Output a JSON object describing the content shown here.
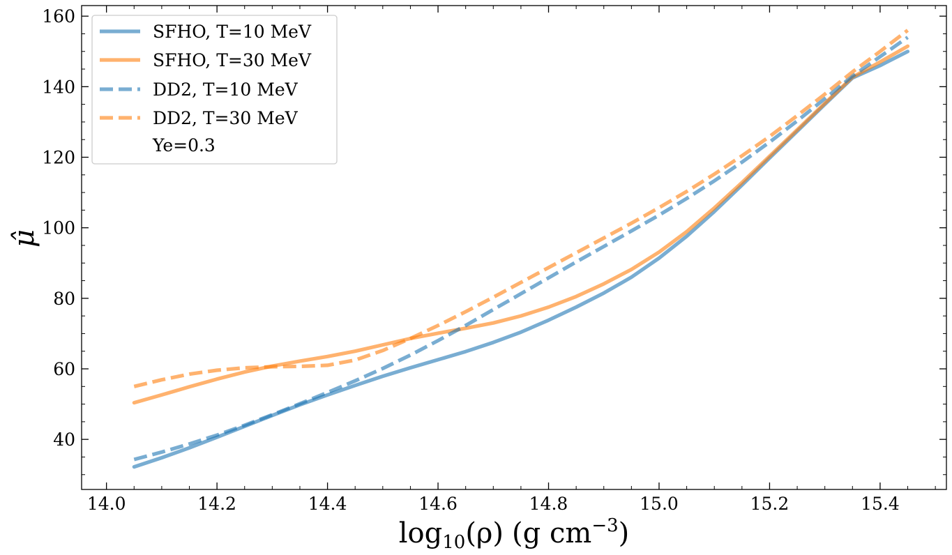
{
  "chart_data": {
    "type": "line",
    "xlabel": "log10(ρ) (g cm⁻³)",
    "xlabel_parts": {
      "func": "log",
      "sub": "10",
      "arg": "(ρ)",
      "unit": "(g cm",
      "exp": "−3",
      "close": ")"
    },
    "ylabel": "μ̂",
    "xlim": [
      13.955,
      15.52
    ],
    "ylim": [
      25.8,
      163
    ],
    "xticks": [
      14.0,
      14.2,
      14.4,
      14.6,
      14.8,
      15.0,
      15.2,
      15.4
    ],
    "xtick_labels": [
      "14.0",
      "14.2",
      "14.4",
      "14.6",
      "14.8",
      "15.0",
      "15.2",
      "15.4"
    ],
    "yticks": [
      40,
      60,
      80,
      100,
      120,
      140,
      160
    ],
    "ytick_labels": [
      "40",
      "60",
      "80",
      "100",
      "120",
      "140",
      "160"
    ],
    "legend_position": "top-left",
    "annotation": "Ye=0.3",
    "series": [
      {
        "name": "SFHO, T=10 MeV",
        "color": "#1f77b4",
        "style": "solid",
        "x": [
          14.05,
          14.1,
          14.15,
          14.2,
          14.25,
          14.3,
          14.35,
          14.4,
          14.45,
          14.5,
          14.55,
          14.6,
          14.65,
          14.7,
          14.75,
          14.8,
          14.85,
          14.9,
          14.95,
          15.0,
          15.05,
          15.1,
          15.15,
          15.2,
          15.25,
          15.3,
          15.35,
          15.4,
          15.45
        ],
        "y": [
          32.2,
          34.8,
          37.6,
          40.6,
          43.7,
          46.8,
          49.8,
          52.6,
          55.3,
          57.9,
          60.3,
          62.6,
          64.9,
          67.5,
          70.4,
          73.8,
          77.5,
          81.5,
          86.0,
          91.4,
          97.6,
          104.6,
          112.1,
          119.8,
          127.4,
          135.0,
          142.5,
          146.0,
          150.0
        ]
      },
      {
        "name": "SFHO, T=30 MeV",
        "color": "#ff7f0e",
        "style": "solid",
        "x": [
          14.05,
          14.1,
          14.15,
          14.2,
          14.25,
          14.3,
          14.35,
          14.4,
          14.45,
          14.5,
          14.55,
          14.6,
          14.65,
          14.7,
          14.75,
          14.8,
          14.85,
          14.9,
          14.95,
          15.0,
          15.05,
          15.1,
          15.15,
          15.2,
          15.25,
          15.3,
          15.35,
          15.4,
          15.45
        ],
        "y": [
          50.4,
          52.6,
          54.9,
          57.1,
          59.1,
          60.8,
          62.2,
          63.5,
          65.0,
          66.8,
          68.6,
          70.1,
          71.5,
          73.0,
          75.0,
          77.5,
          80.5,
          84.1,
          88.2,
          93.1,
          98.9,
          105.6,
          112.8,
          120.3,
          127.8,
          135.3,
          142.7,
          147.0,
          151.5
        ]
      },
      {
        "name": "DD2, T=10 MeV",
        "color": "#1f77b4",
        "style": "dashed",
        "x": [
          14.05,
          14.1,
          14.15,
          14.2,
          14.25,
          14.3,
          14.35,
          14.4,
          14.45,
          14.5,
          14.55,
          14.6,
          14.65,
          14.7,
          14.75,
          14.8,
          14.85,
          14.9,
          14.95,
          15.0,
          15.05,
          15.1,
          15.15,
          15.2,
          15.25,
          15.3,
          15.35,
          15.4,
          15.45
        ],
        "y": [
          34.3,
          36.4,
          38.7,
          41.2,
          44.0,
          47.0,
          50.1,
          53.3,
          56.6,
          60.1,
          63.9,
          68.0,
          72.3,
          76.8,
          81.3,
          85.8,
          90.3,
          94.7,
          99.1,
          103.6,
          108.3,
          113.3,
          118.6,
          124.3,
          130.3,
          136.6,
          143.0,
          148.5,
          154.0
        ]
      },
      {
        "name": "DD2, T=30 MeV",
        "color": "#ff7f0e",
        "style": "dashed",
        "x": [
          14.05,
          14.1,
          14.15,
          14.2,
          14.25,
          14.3,
          14.35,
          14.4,
          14.45,
          14.5,
          14.55,
          14.6,
          14.65,
          14.7,
          14.75,
          14.8,
          14.85,
          14.9,
          14.95,
          15.0,
          15.05,
          15.1,
          15.15,
          15.2,
          15.25,
          15.3,
          15.35,
          15.4,
          15.45
        ],
        "y": [
          55.0,
          56.9,
          58.5,
          59.6,
          60.3,
          60.6,
          60.7,
          61.0,
          62.5,
          65.2,
          68.6,
          72.3,
          76.2,
          80.3,
          84.5,
          88.7,
          92.9,
          97.1,
          101.3,
          105.7,
          110.3,
          115.2,
          120.4,
          125.9,
          131.8,
          137.9,
          144.2,
          150.0,
          156.0
        ]
      }
    ]
  }
}
